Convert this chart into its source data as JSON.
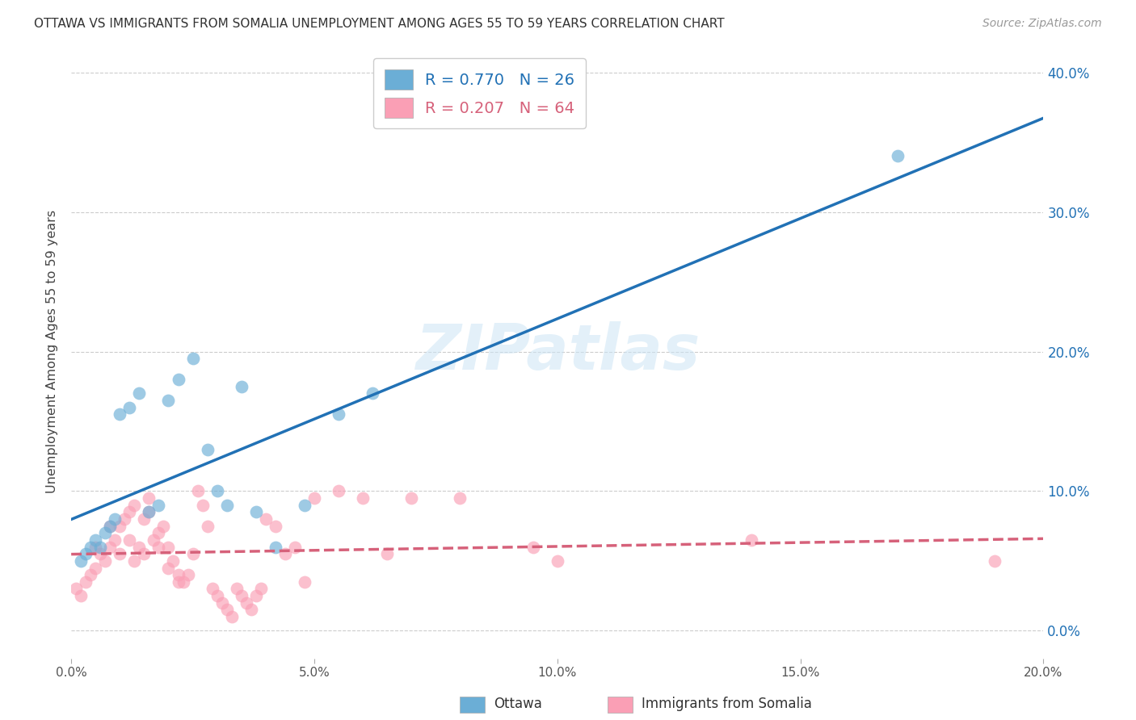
{
  "title": "OTTAWA VS IMMIGRANTS FROM SOMALIA UNEMPLOYMENT AMONG AGES 55 TO 59 YEARS CORRELATION CHART",
  "source": "Source: ZipAtlas.com",
  "ylabel": "Unemployment Among Ages 55 to 59 years",
  "watermark": "ZIPatlas",
  "xlim": [
    0.0,
    0.2
  ],
  "ylim": [
    -0.02,
    0.42
  ],
  "xticks": [
    0.0,
    0.05,
    0.1,
    0.15,
    0.2
  ],
  "yticks": [
    0.0,
    0.1,
    0.2,
    0.3,
    0.4
  ],
  "xtick_labels": [
    "0.0%",
    "5.0%",
    "10.0%",
    "15.0%",
    "20.0%"
  ],
  "ytick_labels": [
    "0.0%",
    "10.0%",
    "20.0%",
    "30.0%",
    "40.0%"
  ],
  "ottawa_color": "#6baed6",
  "somalia_color": "#fa9fb5",
  "ottawa_line_color": "#2171b5",
  "somalia_line_color": "#d6617a",
  "ottawa_R": 0.77,
  "ottawa_N": 26,
  "somalia_R": 0.207,
  "somalia_N": 64,
  "legend_label_ottawa": "Ottawa",
  "legend_label_somalia": "Immigrants from Somalia",
  "background_color": "#ffffff",
  "grid_color": "#cccccc",
  "ottawa_x": [
    0.002,
    0.003,
    0.004,
    0.005,
    0.006,
    0.007,
    0.008,
    0.009,
    0.01,
    0.012,
    0.014,
    0.016,
    0.018,
    0.02,
    0.022,
    0.025,
    0.028,
    0.03,
    0.032,
    0.035,
    0.038,
    0.042,
    0.048,
    0.055,
    0.062,
    0.17
  ],
  "ottawa_y": [
    0.05,
    0.055,
    0.06,
    0.065,
    0.06,
    0.07,
    0.075,
    0.08,
    0.155,
    0.16,
    0.17,
    0.085,
    0.09,
    0.165,
    0.18,
    0.195,
    0.13,
    0.1,
    0.09,
    0.175,
    0.085,
    0.06,
    0.09,
    0.155,
    0.17,
    0.34
  ],
  "somalia_x": [
    0.001,
    0.002,
    0.003,
    0.004,
    0.005,
    0.005,
    0.006,
    0.007,
    0.008,
    0.008,
    0.009,
    0.01,
    0.01,
    0.011,
    0.012,
    0.012,
    0.013,
    0.013,
    0.014,
    0.015,
    0.015,
    0.016,
    0.016,
    0.017,
    0.018,
    0.018,
    0.019,
    0.02,
    0.02,
    0.021,
    0.022,
    0.022,
    0.023,
    0.024,
    0.025,
    0.026,
    0.027,
    0.028,
    0.029,
    0.03,
    0.031,
    0.032,
    0.033,
    0.034,
    0.035,
    0.036,
    0.037,
    0.038,
    0.039,
    0.04,
    0.042,
    0.044,
    0.046,
    0.048,
    0.05,
    0.055,
    0.06,
    0.065,
    0.07,
    0.08,
    0.095,
    0.1,
    0.14,
    0.19
  ],
  "somalia_y": [
    0.03,
    0.025,
    0.035,
    0.04,
    0.045,
    0.06,
    0.055,
    0.05,
    0.06,
    0.075,
    0.065,
    0.055,
    0.075,
    0.08,
    0.065,
    0.085,
    0.09,
    0.05,
    0.06,
    0.055,
    0.08,
    0.085,
    0.095,
    0.065,
    0.06,
    0.07,
    0.075,
    0.06,
    0.045,
    0.05,
    0.04,
    0.035,
    0.035,
    0.04,
    0.055,
    0.1,
    0.09,
    0.075,
    0.03,
    0.025,
    0.02,
    0.015,
    0.01,
    0.03,
    0.025,
    0.02,
    0.015,
    0.025,
    0.03,
    0.08,
    0.075,
    0.055,
    0.06,
    0.035,
    0.095,
    0.1,
    0.095,
    0.055,
    0.095,
    0.095,
    0.06,
    0.05,
    0.065,
    0.05
  ]
}
